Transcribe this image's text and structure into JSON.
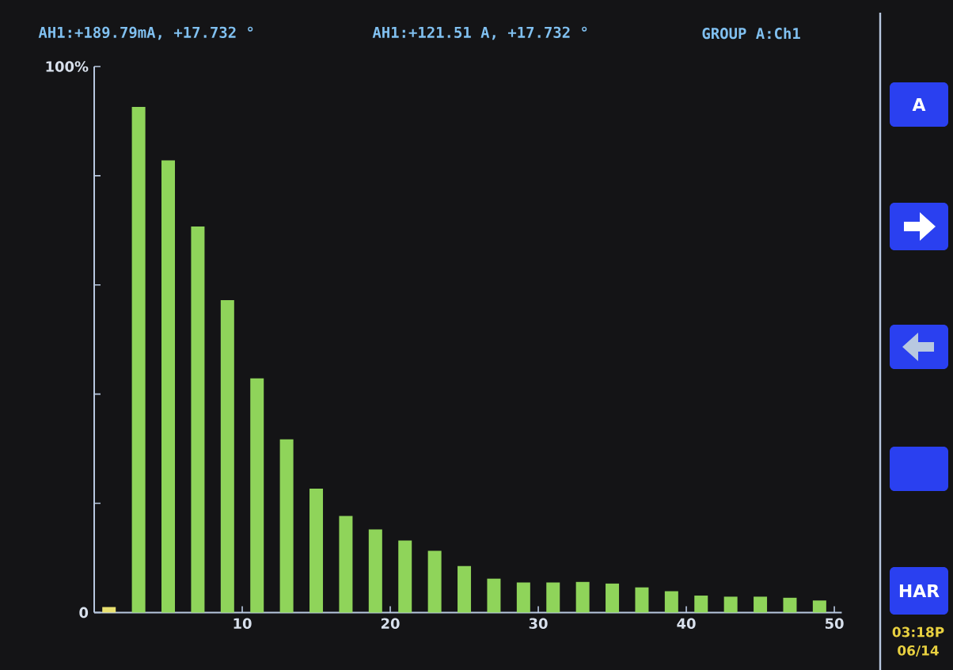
{
  "chart_data": {
    "type": "bar",
    "annotations": [
      "AH1:+189.79mA, +17.732 °",
      "AH1:+121.51 A, +17.732 °",
      "GROUP A:Ch1",
      "A",
      "HAR",
      "03:18P",
      "06/14"
    ],
    "x": [
      1,
      2,
      3,
      4,
      5,
      6,
      7,
      8,
      9,
      10,
      11,
      12,
      13,
      14,
      15,
      16,
      17,
      18,
      19,
      20,
      21,
      22,
      23,
      24,
      25,
      26,
      27,
      28,
      29,
      30,
      31,
      32,
      33,
      34,
      35,
      36,
      37,
      38,
      39,
      40,
      41,
      42,
      43,
      44,
      45,
      46,
      47,
      48,
      49,
      50
    ],
    "values": [
      1.0,
      0,
      92.6,
      0,
      82.8,
      0,
      70.7,
      0,
      57.2,
      0,
      42.9,
      0,
      31.7,
      0,
      22.7,
      0,
      17.7,
      0,
      15.2,
      0,
      13.2,
      0,
      11.3,
      0,
      8.5,
      0,
      6.2,
      0,
      5.5,
      0,
      5.5,
      0,
      5.6,
      0,
      5.3,
      0,
      4.6,
      0,
      3.9,
      0,
      3.1,
      0,
      2.9,
      0,
      2.9,
      0,
      2.7,
      0,
      2.2,
      0
    ],
    "colors": [
      "#e8e070",
      "#8fd45a",
      "#8fd45a",
      "#8fd45a",
      "#8fd45a",
      "#8fd45a",
      "#8fd45a",
      "#8fd45a",
      "#8fd45a",
      "#8fd45a",
      "#8fd45a",
      "#8fd45a",
      "#8fd45a",
      "#8fd45a",
      "#8fd45a",
      "#8fd45a",
      "#8fd45a",
      "#8fd45a",
      "#8fd45a",
      "#8fd45a",
      "#8fd45a",
      "#8fd45a",
      "#8fd45a",
      "#8fd45a",
      "#8fd45a",
      "#8fd45a",
      "#8fd45a",
      "#8fd45a",
      "#8fd45a",
      "#8fd45a",
      "#8fd45a",
      "#8fd45a",
      "#8fd45a",
      "#8fd45a",
      "#8fd45a",
      "#8fd45a",
      "#8fd45a",
      "#8fd45a",
      "#8fd45a",
      "#8fd45a",
      "#8fd45a",
      "#8fd45a",
      "#8fd45a",
      "#8fd45a",
      "#8fd45a",
      "#8fd45a",
      "#8fd45a",
      "#8fd45a",
      "#8fd45a",
      "#8fd45a"
    ],
    "xlim": [
      0,
      50.5
    ],
    "ylim": [
      0,
      100
    ],
    "xticks": [
      10,
      20,
      30,
      40,
      50
    ],
    "yticks": [
      0,
      {
        "value": 20,
        "label": null
      },
      {
        "value": 40,
        "label": null
      },
      {
        "value": 60,
        "label": null
      },
      {
        "value": 80,
        "label": null
      },
      {
        "value": 100,
        "label": "100%"
      }
    ]
  }
}
